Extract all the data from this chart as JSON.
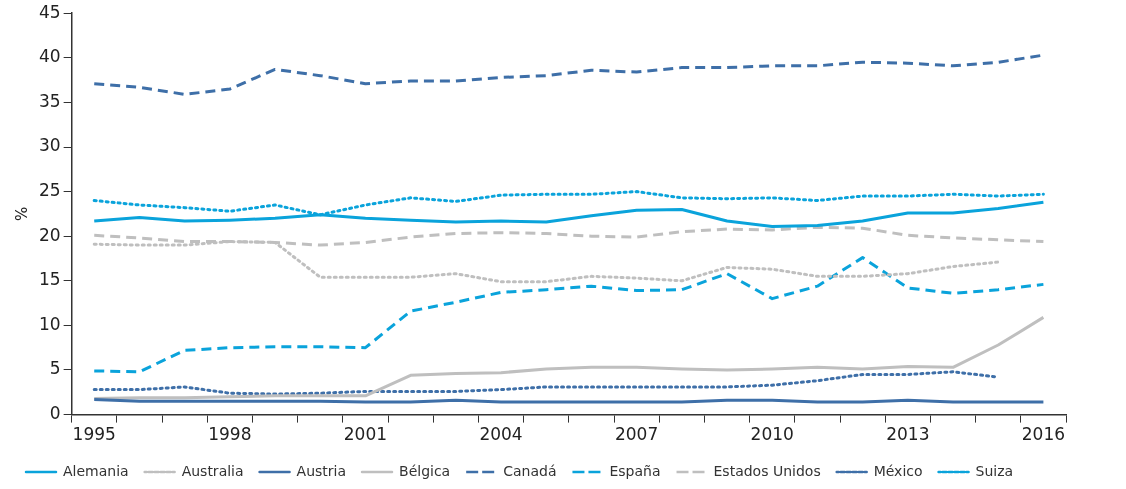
{
  "chart_data": {
    "type": "line",
    "ylabel": "%",
    "categories": [
      "1995",
      null,
      null,
      "1998",
      null,
      null,
      "2001",
      null,
      null,
      "2004",
      null,
      null,
      "2007",
      null,
      null,
      "2010",
      null,
      null,
      "2013",
      null,
      null,
      "2016"
    ],
    "ylim": [
      0,
      45
    ],
    "yticks": [
      0,
      5,
      10,
      15,
      20,
      25,
      30,
      35,
      40,
      45
    ],
    "grid": false,
    "legend": "bottom",
    "marker": "none",
    "series": [
      {
        "name": "Alemania",
        "color": "#0aa3db",
        "line_style": "solid",
        "values": [
          21.7,
          22.1,
          21.7,
          21.8,
          22.0,
          22.4,
          22.0,
          21.8,
          21.6,
          21.7,
          21.6,
          22.3,
          22.9,
          23.0,
          21.7,
          21.1,
          21.2,
          21.7,
          22.6,
          22.6,
          23.1,
          23.8
        ]
      },
      {
        "name": "Australia",
        "color": "#bfbfbf",
        "line_style": "dotted",
        "values": [
          19.1,
          19.0,
          19.0,
          19.4,
          19.3,
          15.4,
          15.4,
          15.4,
          15.8,
          14.9,
          14.9,
          15.5,
          15.3,
          15.0,
          16.5,
          16.3,
          15.5,
          15.5,
          15.8,
          16.6,
          17.1,
          null
        ]
      },
      {
        "name": "Austria",
        "color": "#3e6fa8",
        "line_style": "solid",
        "values": [
          1.7,
          1.5,
          1.5,
          1.5,
          1.5,
          1.5,
          1.4,
          1.4,
          1.6,
          1.4,
          1.4,
          1.4,
          1.4,
          1.4,
          1.6,
          1.6,
          1.4,
          1.4,
          1.6,
          1.4,
          1.4,
          1.4
        ]
      },
      {
        "name": "Bélgica",
        "color": "#bfbfbf",
        "line_style": "solid",
        "values": [
          1.8,
          1.9,
          1.9,
          2.0,
          2.1,
          2.1,
          2.1,
          4.4,
          4.6,
          4.7,
          5.1,
          5.3,
          5.3,
          5.1,
          5.0,
          5.1,
          5.3,
          5.1,
          5.4,
          5.3,
          7.8,
          10.9
        ]
      },
      {
        "name": "Canadá",
        "color": "#3e6fa8",
        "line_style": "dashed",
        "values": [
          37.1,
          36.7,
          35.9,
          36.5,
          38.7,
          38.0,
          37.1,
          37.4,
          37.4,
          37.8,
          38.0,
          38.6,
          38.4,
          38.9,
          38.9,
          39.1,
          39.1,
          39.5,
          39.4,
          39.1,
          39.5,
          40.3
        ]
      },
      {
        "name": "España",
        "color": "#0aa3db",
        "line_style": "dashed",
        "values": [
          4.9,
          4.8,
          7.2,
          7.5,
          7.6,
          7.6,
          7.5,
          11.6,
          12.6,
          13.7,
          14.0,
          14.4,
          13.9,
          14.0,
          15.8,
          13.0,
          14.4,
          17.6,
          14.2,
          13.6,
          14.0,
          14.6
        ]
      },
      {
        "name": "Estados Unidos",
        "color": "#bfbfbf",
        "line_style": "dashed",
        "values": [
          20.1,
          19.8,
          19.4,
          19.4,
          19.3,
          19.0,
          19.3,
          19.9,
          20.3,
          20.4,
          20.3,
          20.0,
          19.9,
          20.5,
          20.8,
          20.7,
          21.0,
          20.9,
          20.1,
          19.8,
          19.6,
          19.4
        ]
      },
      {
        "name": "México",
        "color": "#3e6fa8",
        "line_style": "dotted",
        "values": [
          2.8,
          2.8,
          3.1,
          2.4,
          2.3,
          2.4,
          2.6,
          2.6,
          2.6,
          2.8,
          3.1,
          3.1,
          3.1,
          3.1,
          3.1,
          3.3,
          3.8,
          4.5,
          4.5,
          4.8,
          4.2,
          null
        ]
      },
      {
        "name": "Suiza",
        "color": "#0aa3db",
        "line_style": "dotted",
        "values": [
          24.0,
          23.5,
          23.2,
          22.8,
          23.5,
          22.4,
          23.5,
          24.3,
          23.9,
          24.6,
          24.7,
          24.7,
          25.0,
          24.3,
          24.2,
          24.3,
          24.0,
          24.5,
          24.5,
          24.7,
          24.5,
          24.7
        ]
      }
    ]
  }
}
